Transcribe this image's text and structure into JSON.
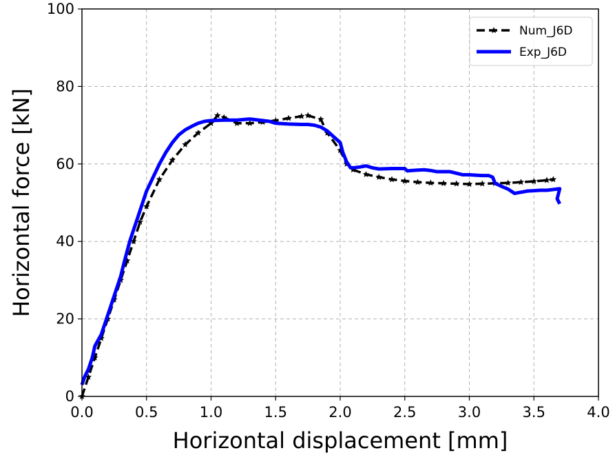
{
  "chart_data": {
    "type": "line",
    "xlabel": "Horizontal displacement [mm]",
    "ylabel": "Horizontal force [kN]",
    "xlim": [
      0.0,
      4.0
    ],
    "ylim": [
      0,
      100
    ],
    "xticks": [
      "0.0",
      "0.5",
      "1.0",
      "1.5",
      "2.0",
      "2.5",
      "3.0",
      "3.5",
      "4.0"
    ],
    "yticks": [
      "0",
      "20",
      "40",
      "60",
      "80",
      "100"
    ],
    "grid": true,
    "legend_position": "top-right",
    "series": [
      {
        "name": "Num_J6D",
        "color": "#000000",
        "style": "dashed-star",
        "x": [
          0.0,
          0.05,
          0.1,
          0.15,
          0.2,
          0.25,
          0.3,
          0.35,
          0.4,
          0.45,
          0.5,
          0.6,
          0.7,
          0.8,
          0.9,
          1.0,
          1.05,
          1.1,
          1.2,
          1.3,
          1.4,
          1.5,
          1.6,
          1.7,
          1.75,
          1.85,
          1.9,
          2.0,
          2.05,
          2.1,
          2.2,
          2.3,
          2.4,
          2.5,
          2.6,
          2.7,
          2.8,
          2.9,
          3.0,
          3.1,
          3.2,
          3.3,
          3.4,
          3.5,
          3.6,
          3.65
        ],
        "y": [
          0,
          5,
          10,
          15,
          20,
          25,
          30,
          35,
          40,
          45,
          49,
          56,
          61,
          65,
          68,
          70.5,
          72.5,
          72,
          70.5,
          70.5,
          70.8,
          71.2,
          71.8,
          72.3,
          72.5,
          71.5,
          68,
          63.5,
          60,
          58.5,
          57.3,
          56.6,
          56,
          55.6,
          55.3,
          55.1,
          55,
          54.9,
          54.8,
          54.9,
          55,
          55.1,
          55.3,
          55.5,
          55.8,
          56
        ]
      },
      {
        "name": "Exp_J6D",
        "color": "#0000ff",
        "style": "solid",
        "x": [
          0.0,
          0.02,
          0.05,
          0.08,
          0.1,
          0.15,
          0.2,
          0.25,
          0.3,
          0.33,
          0.35,
          0.37,
          0.4,
          0.43,
          0.45,
          0.5,
          0.55,
          0.6,
          0.65,
          0.7,
          0.75,
          0.8,
          0.85,
          0.9,
          0.95,
          1.0,
          1.1,
          1.2,
          1.3,
          1.4,
          1.45,
          1.5,
          1.6,
          1.7,
          1.75,
          1.8,
          1.85,
          1.9,
          1.95,
          2.0,
          2.02,
          2.05,
          2.08,
          2.1,
          2.15,
          2.2,
          2.25,
          2.3,
          2.4,
          2.5,
          2.52,
          2.55,
          2.6,
          2.65,
          2.7,
          2.75,
          2.8,
          2.85,
          2.9,
          2.95,
          3.0,
          3.05,
          3.1,
          3.15,
          3.18,
          3.2,
          3.25,
          3.3,
          3.35,
          3.4,
          3.45,
          3.5,
          3.55,
          3.6,
          3.65,
          3.7,
          3.68,
          3.7
        ],
        "y": [
          3,
          5,
          7,
          10,
          13,
          16,
          21,
          26,
          31,
          35,
          37.5,
          40,
          43,
          46,
          48,
          53,
          56.5,
          60,
          63,
          65.5,
          67.5,
          68.8,
          69.7,
          70.5,
          71,
          71.2,
          71.3,
          71.3,
          71.6,
          71.2,
          71,
          70.5,
          70.3,
          70.2,
          70.2,
          70,
          69.5,
          68.5,
          67,
          65.5,
          63,
          60.5,
          59,
          59,
          59.2,
          59.5,
          59,
          58.7,
          58.8,
          58.8,
          58.2,
          58.3,
          58.4,
          58.5,
          58.3,
          58,
          58,
          58,
          57.6,
          57.2,
          57.2,
          57.1,
          57,
          57,
          56.6,
          55,
          54.2,
          53.5,
          52.4,
          52.7,
          53,
          53.1,
          53.2,
          53.2,
          53.4,
          53.6,
          51,
          49.7
        ]
      }
    ]
  }
}
